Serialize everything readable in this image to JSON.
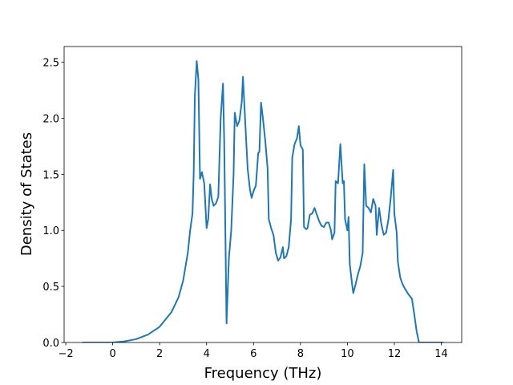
{
  "chart_data": {
    "type": "line",
    "xlabel": "Frequency (THz)",
    "ylabel": "Density of States",
    "color": "#1f77b4",
    "x": [
      -1.3,
      -0.5,
      0,
      0.5,
      1,
      1.5,
      2,
      2.5,
      2.8,
      3.0,
      3.2,
      3.3,
      3.4,
      3.45,
      3.5,
      3.58,
      3.65,
      3.72,
      3.8,
      3.9,
      4.0,
      4.07,
      4.15,
      4.22,
      4.3,
      4.4,
      4.5,
      4.6,
      4.7,
      4.75,
      4.85,
      4.95,
      5.05,
      5.15,
      5.2,
      5.3,
      5.4,
      5.5,
      5.55,
      5.65,
      5.75,
      5.85,
      5.92,
      6.0,
      6.1,
      6.2,
      6.25,
      6.32,
      6.4,
      6.5,
      6.6,
      6.65,
      6.75,
      6.85,
      6.95,
      7.05,
      7.15,
      7.25,
      7.3,
      7.4,
      7.5,
      7.6,
      7.65,
      7.75,
      7.85,
      7.93,
      8.0,
      8.1,
      8.15,
      8.25,
      8.3,
      8.4,
      8.5,
      8.6,
      8.7,
      8.8,
      8.9,
      9.0,
      9.1,
      9.2,
      9.3,
      9.35,
      9.45,
      9.5,
      9.6,
      9.7,
      9.8,
      9.85,
      9.9,
      10.0,
      10.05,
      10.1,
      10.2,
      10.25,
      10.35,
      10.45,
      10.55,
      10.65,
      10.72,
      10.8,
      10.9,
      11.0,
      11.1,
      11.2,
      11.25,
      11.35,
      11.45,
      11.55,
      11.65,
      11.75,
      11.85,
      11.95,
      12.0,
      12.1,
      12.15,
      12.25,
      12.35,
      12.45,
      12.6,
      12.75,
      12.85,
      12.95,
      13.05,
      13.5,
      14.1
    ],
    "values": [
      0,
      0,
      0,
      0.01,
      0.03,
      0.07,
      0.14,
      0.27,
      0.4,
      0.55,
      0.8,
      1.0,
      1.15,
      1.5,
      2.2,
      2.51,
      2.35,
      1.46,
      1.52,
      1.42,
      1.02,
      1.1,
      1.41,
      1.28,
      1.22,
      1.24,
      1.3,
      2.0,
      2.31,
      1.8,
      0.17,
      0.75,
      1.0,
      1.5,
      2.05,
      1.93,
      1.98,
      2.15,
      2.37,
      1.95,
      1.55,
      1.36,
      1.29,
      1.35,
      1.4,
      1.69,
      1.7,
      2.14,
      2.0,
      1.8,
      1.55,
      1.1,
      1.02,
      0.96,
      0.8,
      0.73,
      0.76,
      0.85,
      0.75,
      0.77,
      0.85,
      1.1,
      1.65,
      1.77,
      1.82,
      1.93,
      1.76,
      1.72,
      1.03,
      1.01,
      1.02,
      1.14,
      1.15,
      1.2,
      1.14,
      1.08,
      1.04,
      1.03,
      1.07,
      1.07,
      1.0,
      0.92,
      0.98,
      1.44,
      1.42,
      1.77,
      1.42,
      1.44,
      1.1,
      1.0,
      1.12,
      0.7,
      0.52,
      0.44,
      0.52,
      0.61,
      0.68,
      0.8,
      1.59,
      1.22,
      1.2,
      1.16,
      1.28,
      1.22,
      0.96,
      1.2,
      1.05,
      0.96,
      0.98,
      1.1,
      1.3,
      1.54,
      1.15,
      0.98,
      0.72,
      0.58,
      0.52,
      0.48,
      0.43,
      0.39,
      0.25,
      0.1,
      0,
      0,
      0
    ],
    "xlim": [
      -2.07,
      14.87
    ],
    "ylim": [
      0,
      2.64
    ],
    "xticks": [
      {
        "value": -2,
        "label": "−2"
      },
      0,
      2,
      4,
      6,
      8,
      10,
      12,
      14
    ],
    "yticks": [
      {
        "value": 0,
        "label": "0.0"
      },
      0.5,
      {
        "value": 1,
        "label": "1.0"
      },
      1.5,
      {
        "value": 2,
        "label": "2.0"
      },
      2.5
    ]
  }
}
